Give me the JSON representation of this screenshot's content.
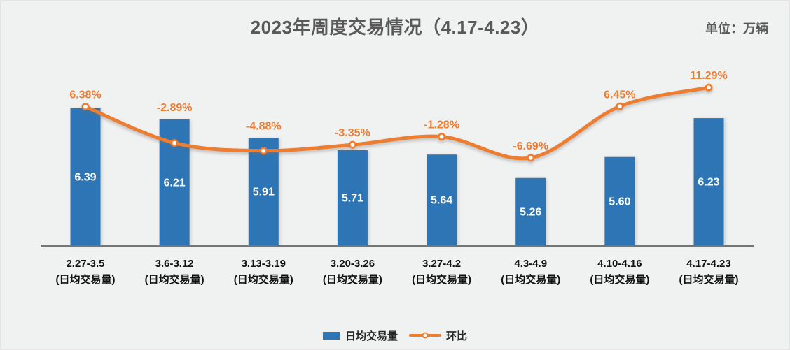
{
  "header": {
    "title": "2023年周度交易情况（4.17-4.23）",
    "unit_label": "单位：万辆"
  },
  "legend": {
    "bar_label": "日均交易量",
    "line_label": "环比"
  },
  "colors": {
    "background": "#f0f1f1",
    "bar_fill": "#2E75B6",
    "line_stroke": "#ED7D31",
    "pct_label_text": "#ED7D31",
    "bar_value_text": "#ffffff",
    "axis_line": "#757575",
    "title_text": "#595959",
    "category_text": "#111111"
  },
  "chart_data": {
    "type": "bar",
    "subtype": "bar-line-combo",
    "title": "2023年周度交易情况（4.17-4.23）",
    "unit": "万辆",
    "categories": [
      "2.27-3.5",
      "3.6-3.12",
      "3.13-3.19",
      "3.20-3.26",
      "3.27-4.2",
      "4.3-4.9",
      "4.10-4.16",
      "4.17-4.23"
    ],
    "category_sublabel": "(日均交易量)",
    "series": [
      {
        "name": "日均交易量",
        "type": "bar",
        "values": [
          6.39,
          6.21,
          5.91,
          5.71,
          5.64,
          5.26,
          5.6,
          6.23
        ],
        "value_labels": [
          "6.39",
          "6.21",
          "5.91",
          "5.71",
          "5.64",
          "5.26",
          "5.60",
          "6.23"
        ]
      },
      {
        "name": "环比",
        "type": "line",
        "unit": "%",
        "values": [
          6.38,
          -2.89,
          -4.88,
          -3.35,
          -1.28,
          -6.69,
          6.45,
          11.29
        ],
        "value_labels": [
          "6.38%",
          "-2.89%",
          "-4.88%",
          "-3.35%",
          "-1.28%",
          "-6.69%",
          "6.45%",
          "11.29%"
        ]
      }
    ],
    "legend_position": "bottom",
    "gridlines": false,
    "bar_axis_hidden_baseline": 4.17,
    "value_label_position": "inside-center",
    "pct_label_position": "above-point"
  }
}
